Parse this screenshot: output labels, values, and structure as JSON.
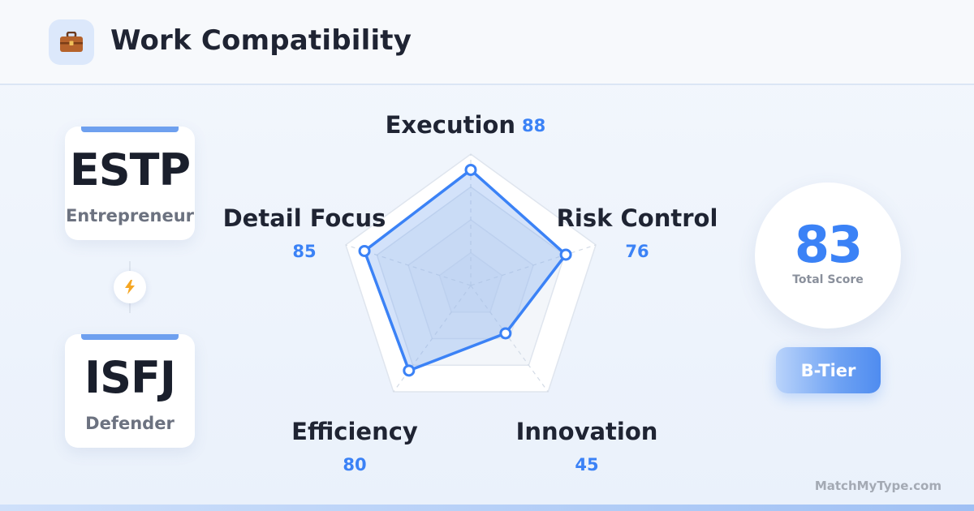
{
  "header": {
    "title": "Work Compatibility",
    "icon": "briefcase-icon"
  },
  "types": [
    {
      "code": "ESTP",
      "name": "Entrepreneur"
    },
    {
      "code": "ISFJ",
      "name": "Defender"
    }
  ],
  "connector": {
    "icon": "lightning-icon"
  },
  "score": {
    "value": "83",
    "label": "Total Score"
  },
  "tier": {
    "label": "B-Tier"
  },
  "brand": "MatchMyType.com",
  "colors": {
    "accent": "#3b82f6",
    "text": "#1f2433",
    "muted": "#6c7280"
  },
  "chart_data": {
    "type": "radar",
    "axes": [
      "Execution",
      "Risk Control",
      "Innovation",
      "Efficiency",
      "Detail Focus"
    ],
    "values": [
      88,
      76,
      45,
      80,
      85
    ],
    "range": [
      0,
      100
    ],
    "grid_levels": 4
  }
}
